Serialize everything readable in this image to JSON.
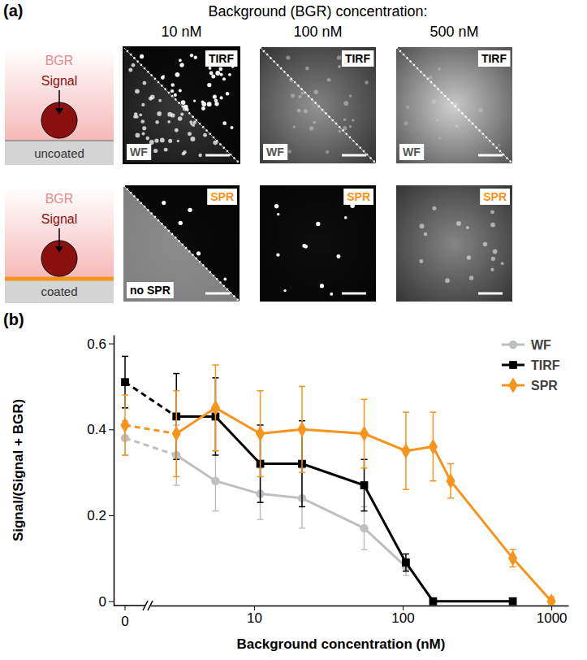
{
  "panel_a": {
    "label": "(a)",
    "title": "Background (BGR) concentration:",
    "columns": [
      "10 nM",
      "100 nM",
      "500 nM"
    ],
    "rows": [
      {
        "bgr_label": "BGR",
        "signal_label": "Signal",
        "substrate_label": "uncoated",
        "images": [
          {
            "upper_label": "TIRF",
            "lower_label": "WF"
          },
          {
            "upper_label": "TIRF",
            "lower_label": "WF"
          },
          {
            "upper_label": "TIRF",
            "lower_label": "WF"
          }
        ]
      },
      {
        "bgr_label": "BGR",
        "signal_label": "Signal",
        "substrate_label": "coated",
        "images": [
          {
            "upper_label": "SPR",
            "lower_label": "no SPR"
          },
          {
            "upper_label": "SPR"
          },
          {
            "upper_label": "SPR"
          }
        ]
      }
    ]
  },
  "chart_data": {
    "type": "line",
    "panel_label": "(b)",
    "x_label": "Background concentration (nM)",
    "y_label": "Signal/(Signal + BGR)",
    "log": "x",
    "x_break": 2,
    "xlim": [
      0,
      1300
    ],
    "xticks": [
      0,
      10,
      100,
      1000
    ],
    "ylim": [
      -0.01,
      0.62
    ],
    "yticks": [
      0,
      0.2,
      0.4,
      0.6
    ],
    "grid": false,
    "legend": "upper right",
    "series": [
      {
        "name": "WF",
        "color": "#bfbfbf",
        "marker": "circle",
        "line_style": "solid",
        "x": [
          0,
          3,
          5.5,
          11,
          21,
          55,
          105
        ],
        "values": [
          0.38,
          0.34,
          0.28,
          0.25,
          0.24,
          0.17,
          0.08
        ],
        "errors": [
          0.04,
          0.07,
          0.07,
          0.06,
          0.07,
          0.05,
          0.02
        ]
      },
      {
        "name": "TIRF",
        "color": "#000000",
        "marker": "square",
        "line_style": "solid",
        "x": [
          0,
          3,
          5.5,
          11,
          21,
          55,
          105,
          160,
          550
        ],
        "values": [
          0.51,
          0.43,
          0.43,
          0.32,
          0.32,
          0.27,
          0.09,
          0,
          0
        ],
        "errors": [
          0.06,
          0.1,
          0.09,
          0.09,
          0.1,
          0.06,
          0.02,
          0.005,
          0.005
        ]
      },
      {
        "name": "SPR",
        "color": "#f7941d",
        "marker": "diamond",
        "line_style": "solid",
        "x": [
          0,
          3,
          5.5,
          11,
          21,
          55,
          105,
          160,
          210,
          550,
          1000
        ],
        "values": [
          0.41,
          0.39,
          0.45,
          0.39,
          0.4,
          0.39,
          0.35,
          0.36,
          0.28,
          0.1,
          0
        ],
        "errors": [
          0.07,
          0.1,
          0.1,
          0.1,
          0.1,
          0.08,
          0.09,
          0.08,
          0.04,
          0.02,
          0.01
        ]
      }
    ]
  }
}
